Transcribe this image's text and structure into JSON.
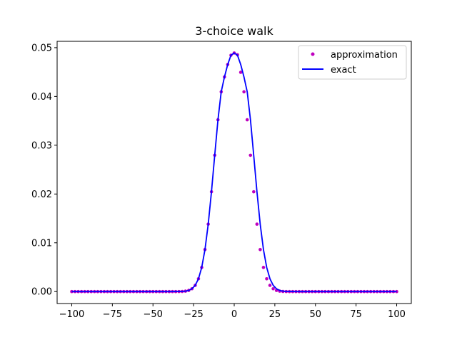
{
  "chart_data": {
    "type": "line",
    "title": "3-choice walk",
    "xlabel": "",
    "ylabel": "",
    "xlim": [
      -109,
      109
    ],
    "ylim": [
      -0.00245,
      0.0513
    ],
    "x_ticks": [
      -100,
      -75,
      -50,
      -25,
      0,
      25,
      50,
      75,
      100
    ],
    "x_tick_labels": [
      "−100",
      "−75",
      "−50",
      "−25",
      "0",
      "25",
      "50",
      "75",
      "100"
    ],
    "y_ticks": [
      0.0,
      0.01,
      0.02,
      0.03,
      0.04,
      0.05
    ],
    "y_tick_labels": [
      "0.00",
      "0.01",
      "0.02",
      "0.03",
      "0.04",
      "0.05"
    ],
    "grid": false,
    "legend_position": "top-right",
    "series": [
      {
        "name": "approximation",
        "style": "points",
        "color": "#bf00bf",
        "x": [
          -100,
          -98,
          -96,
          -94,
          -92,
          -90,
          -88,
          -86,
          -84,
          -82,
          -80,
          -78,
          -76,
          -74,
          -72,
          -70,
          -68,
          -66,
          -64,
          -62,
          -60,
          -58,
          -56,
          -54,
          -52,
          -50,
          -48,
          -46,
          -44,
          -42,
          -40,
          -38,
          -36,
          -34,
          -32,
          -30,
          -28,
          -26,
          -24,
          -22,
          -20,
          -18,
          -16,
          -14,
          -12,
          -10,
          -8,
          -6,
          -4,
          -2,
          0,
          2,
          4,
          6,
          8,
          10,
          12,
          14,
          16,
          18,
          20,
          22,
          24,
          26,
          28,
          30,
          32,
          34,
          36,
          38,
          40,
          42,
          44,
          46,
          48,
          50,
          52,
          54,
          56,
          58,
          60,
          62,
          64,
          66,
          68,
          70,
          72,
          74,
          76,
          78,
          80,
          82,
          84,
          86,
          88,
          90,
          92,
          94,
          96,
          98,
          100
        ],
        "y": [
          0,
          0,
          0,
          0,
          0,
          0,
          0,
          0,
          0,
          0,
          0,
          0,
          0,
          0,
          0,
          0,
          0,
          0,
          0,
          0,
          0,
          0,
          0,
          0,
          0,
          0,
          0,
          0,
          0,
          0,
          0,
          0,
          0,
          1e-05,
          3e-05,
          9e-05,
          0.00024,
          0.00058,
          0.00128,
          0.00262,
          0.00495,
          0.00861,
          0.01382,
          0.02046,
          0.02794,
          0.03522,
          0.04095,
          0.044,
          0.04655,
          0.04845,
          0.0489,
          0.04855,
          0.04495,
          0.04095,
          0.03522,
          0.02794,
          0.02046,
          0.01382,
          0.00861,
          0.00495,
          0.00262,
          0.00128,
          0.00058,
          0.00024,
          9e-05,
          3e-05,
          1e-05,
          0,
          0,
          0,
          0,
          0,
          0,
          0,
          0,
          0,
          0,
          0,
          0,
          0,
          0,
          0,
          0,
          0,
          0,
          0,
          0,
          0,
          0,
          0,
          0,
          0,
          0,
          0,
          0,
          0,
          0,
          0,
          0,
          0,
          0
        ]
      },
      {
        "name": "exact",
        "style": "line",
        "color": "#0000ff",
        "x": [
          -100,
          -95,
          -90,
          -85,
          -80,
          -75,
          -70,
          -65,
          -60,
          -55,
          -50,
          -45,
          -40,
          -35,
          -32,
          -30,
          -28,
          -26,
          -24,
          -22,
          -20,
          -18,
          -16,
          -14,
          -12,
          -10,
          -8,
          -6,
          -4,
          -2,
          0,
          2,
          4,
          6,
          8,
          10,
          12,
          14,
          16,
          18,
          20,
          22,
          24,
          26,
          28,
          30,
          32,
          35,
          40,
          45,
          50,
          55,
          60,
          65,
          70,
          75,
          80,
          85,
          90,
          95,
          100
        ],
        "y": [
          0,
          0,
          0,
          0,
          0,
          0,
          0,
          0,
          0,
          0,
          0,
          0,
          0,
          1e-05,
          3e-05,
          9e-05,
          0.00024,
          0.00058,
          0.00128,
          0.00262,
          0.00495,
          0.00861,
          0.01382,
          0.02046,
          0.02794,
          0.03522,
          0.04095,
          0.044,
          0.04655,
          0.04845,
          0.0489,
          0.04845,
          0.04655,
          0.044,
          0.04095,
          0.03522,
          0.02794,
          0.02046,
          0.01382,
          0.00861,
          0.00495,
          0.00262,
          0.00128,
          0.00058,
          0.00024,
          9e-05,
          3e-05,
          1e-05,
          0,
          0,
          0,
          0,
          0,
          0,
          0,
          0,
          0,
          0,
          0,
          0,
          0
        ]
      }
    ]
  }
}
